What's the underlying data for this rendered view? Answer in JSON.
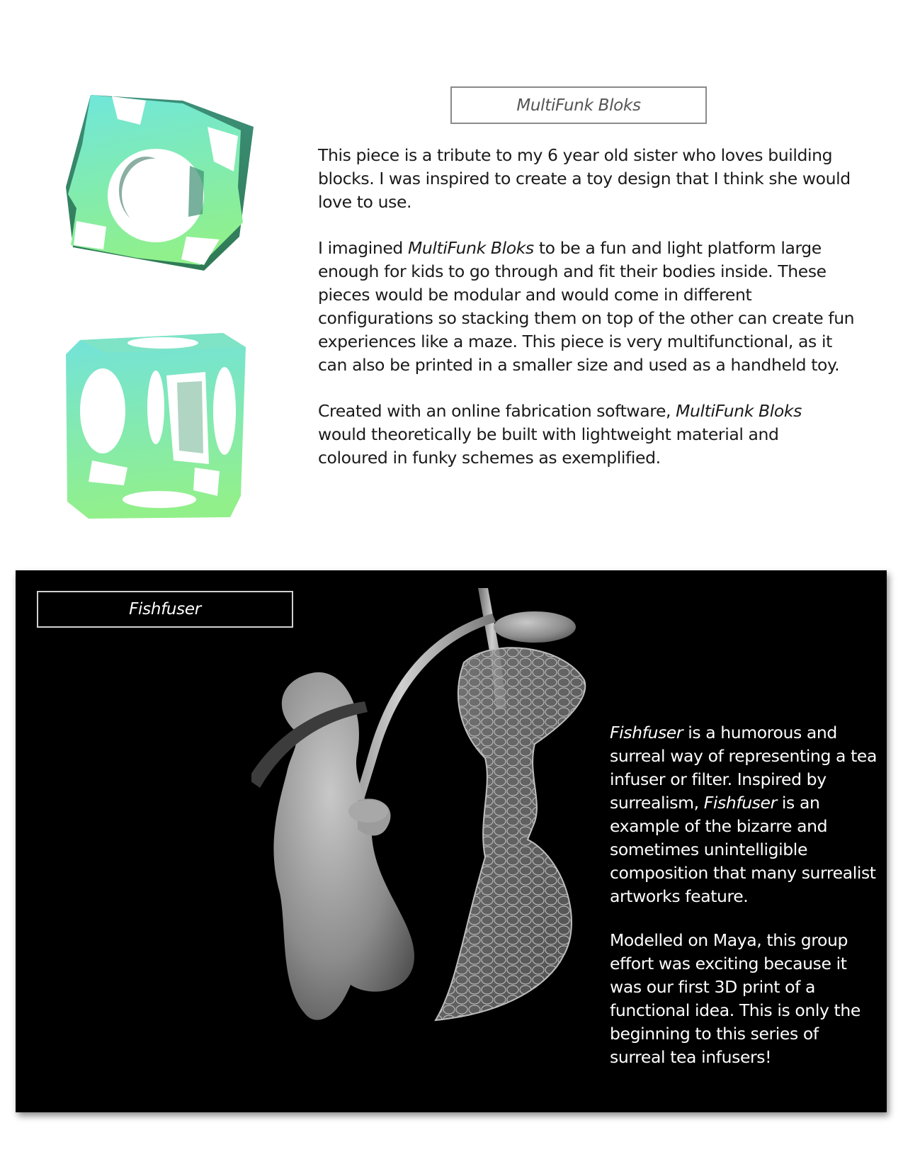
{
  "multifunk": {
    "title": "MultiFunk Bloks",
    "intro_lines": [
      "This piece is a tribute to my 6 year old sister who loves building",
      "blocks. I was inspired to create a toy design that I think she would",
      "love to use."
    ],
    "p2_l1_pre": "I imagined ",
    "p2_l1_em": "MultiFunk Bloks",
    "p2_l1_post": " to be a fun and light platform large",
    "p2_lines": [
      "enough for kids to go through and fit their bodies inside. These",
      "pieces would be modular and would come in different",
      "configurations so stacking them on top of the other can create fun",
      "experiences like a maze. This piece is very multifunctional, as it",
      "can also be printed in a smaller size and used as a handheld toy."
    ],
    "p3_l1_pre": "Created with an online fabrication software, ",
    "p3_l1_em": "MultiFunk Bloks",
    "p3_lines": [
      "would theoretically be built with lightweight material and",
      "coloured in funky schemes as exemplified."
    ]
  },
  "fishfuser": {
    "title": "Fishfuser",
    "p1_l1_em": "Fishfuser",
    "p1_l1_post": " is a humorous and",
    "p1_l2": "surreal way of representing a tea",
    "p1_l3": "infuser or filter. Inspired by",
    "p1_l4_pre": "surrealism, ",
    "p1_l4_em": "Fishfuser",
    "p1_l4_post": " is an",
    "p1_lines_rest": [
      "example of the bizarre and",
      "sometimes unintelligible",
      "composition that many surrealist",
      "artworks feature."
    ],
    "p2_lines": [
      "Modelled on Maya, this group",
      "effort was exciting because it",
      "was our first 3D print of a",
      "functional idea. This is only the",
      "beginning to this series of",
      "surreal tea infusers!"
    ]
  },
  "colors": {
    "cube_top": "#6fe6d6",
    "cube_bottom": "#8df08a",
    "render_grey": "#9a9a9a"
  }
}
